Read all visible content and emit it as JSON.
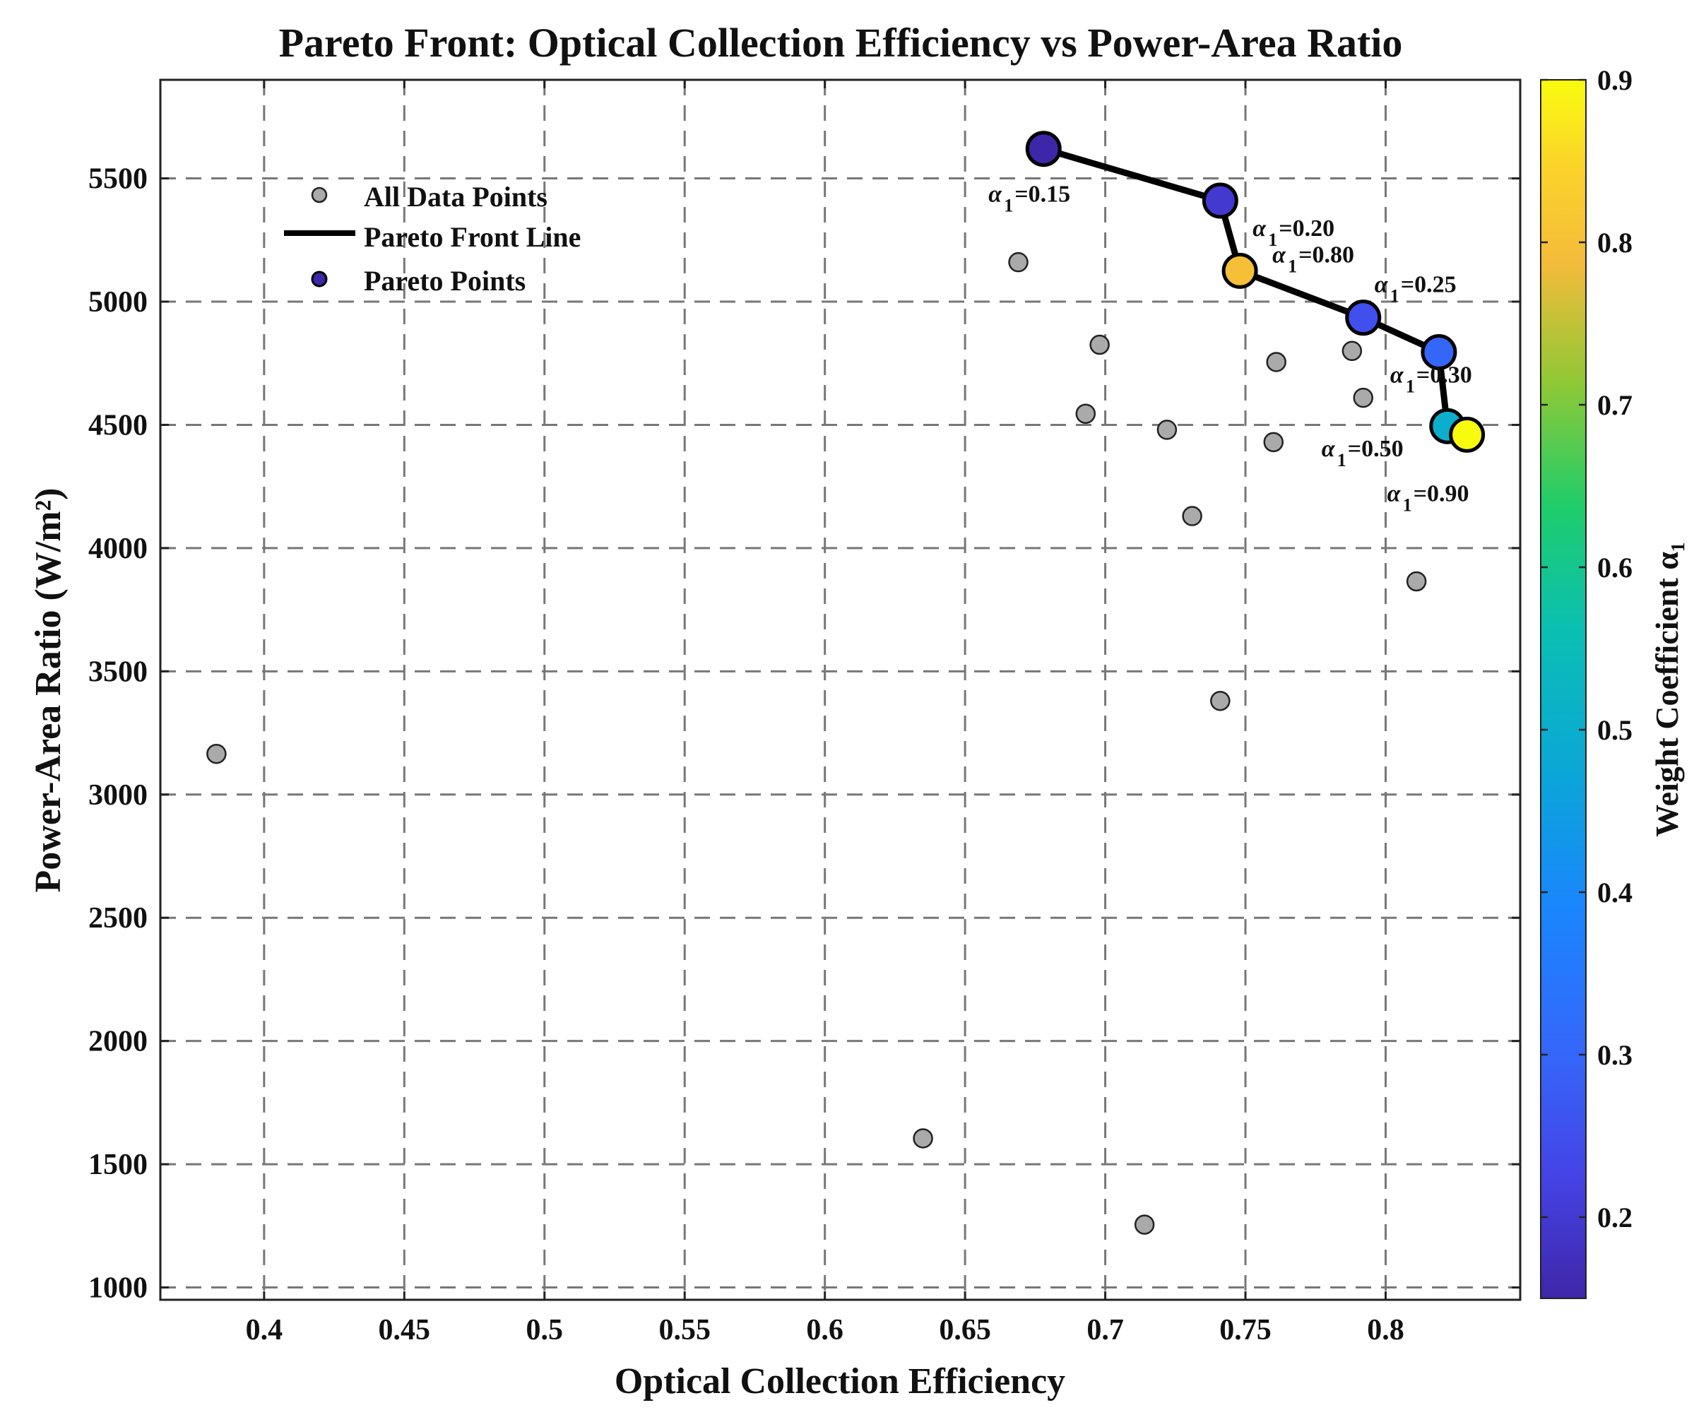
{
  "chart_data": {
    "type": "scatter",
    "title": "Pareto Front: Optical Collection Efficiency vs Power-Area Ratio",
    "xlabel": "Optical Collection Efficiency",
    "ylabel": "Power-Area Ratio (W/m²)",
    "xlim": [
      0.363,
      0.848
    ],
    "ylim": [
      950,
      5900
    ],
    "xticks": [
      0.4,
      0.45,
      0.5,
      0.55,
      0.6,
      0.65,
      0.7,
      0.75,
      0.8
    ],
    "xtick_labels": [
      "0.4",
      "0.45",
      "0.5",
      "0.55",
      "0.6",
      "0.65",
      "0.7",
      "0.75",
      "0.8"
    ],
    "yticks": [
      1000,
      1500,
      2000,
      2500,
      3000,
      3500,
      4000,
      4500,
      5000,
      5500
    ],
    "ytick_labels": [
      "1000",
      "1500",
      "2000",
      "2500",
      "3000",
      "3500",
      "4000",
      "4500",
      "5000",
      "5500"
    ],
    "grid": true,
    "legend_position": "top-left",
    "legend": [
      "All Data Points",
      "Pareto Front Line",
      "Pareto Points"
    ],
    "all_points": {
      "name": "All Data Points",
      "color": "#aaaaaa",
      "x": [
        0.383,
        0.635,
        0.669,
        0.693,
        0.698,
        0.714,
        0.722,
        0.731,
        0.741,
        0.76,
        0.761,
        0.788,
        0.792,
        0.811
      ],
      "y": [
        3165,
        1605,
        5160,
        4545,
        4825,
        1255,
        4480,
        4130,
        3380,
        4430,
        4755,
        4800,
        4610,
        3865
      ]
    },
    "pareto_points": {
      "name": "Pareto Points",
      "x": [
        0.678,
        0.741,
        0.748,
        0.792,
        0.819,
        0.822,
        0.829
      ],
      "y": [
        5620,
        5410,
        5125,
        4935,
        4795,
        4495,
        4460
      ],
      "alpha": [
        0.15,
        0.2,
        0.8,
        0.25,
        0.3,
        0.5,
        0.9
      ],
      "label_prefix": "α",
      "label_subscript": "1",
      "labels": [
        "=0.15",
        "=0.20",
        "=0.80",
        "=0.25",
        "=0.30",
        "=0.50",
        "=0.90"
      ]
    },
    "pareto_line": {
      "name": "Pareto Front Line",
      "color": "#000000",
      "order": [
        0,
        1,
        2,
        3,
        4,
        5,
        6
      ]
    },
    "colorbar": {
      "label": "Weight Coefficient α₁",
      "range": [
        0.15,
        0.9
      ],
      "ticks": [
        0.2,
        0.3,
        0.4,
        0.5,
        0.6,
        0.7,
        0.8,
        0.9
      ],
      "tick_labels": [
        "0.2",
        "0.3",
        "0.4",
        "0.5",
        "0.6",
        "0.7",
        "0.8",
        "0.9"
      ],
      "colormap": "parula"
    }
  }
}
